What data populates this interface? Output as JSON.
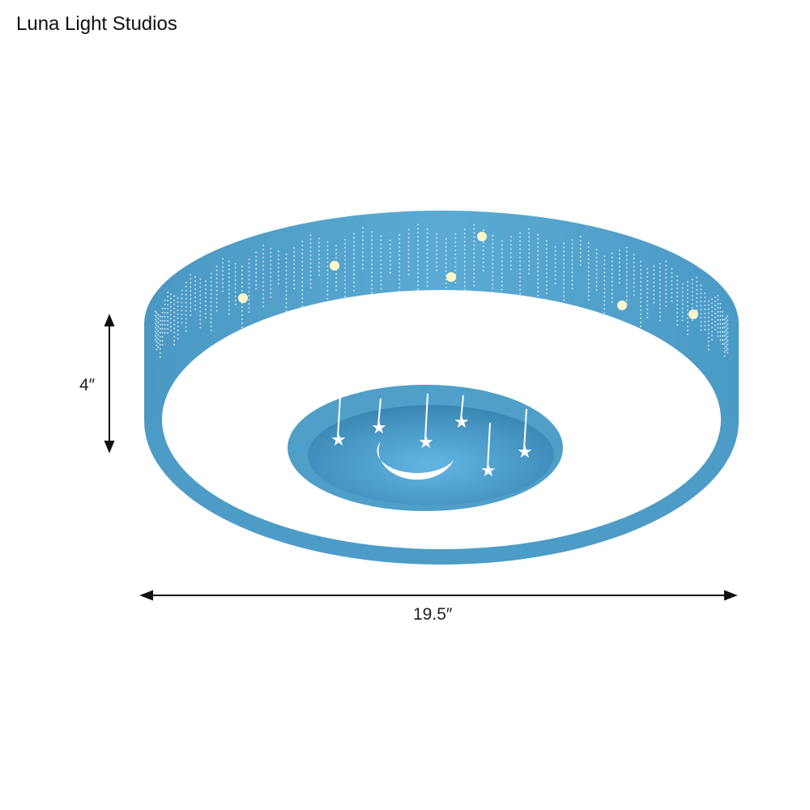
{
  "brand": "Luna Light Studios",
  "dimensions": {
    "height_label": "4″",
    "width_label": "19.5″"
  },
  "colors": {
    "shade": "#4f9fc9",
    "shade_dark": "#3a86b3",
    "diffuser": "#ffffff",
    "inner": "#4a9ccb"
  },
  "icons": [
    "moon-icon",
    "star-icon"
  ]
}
